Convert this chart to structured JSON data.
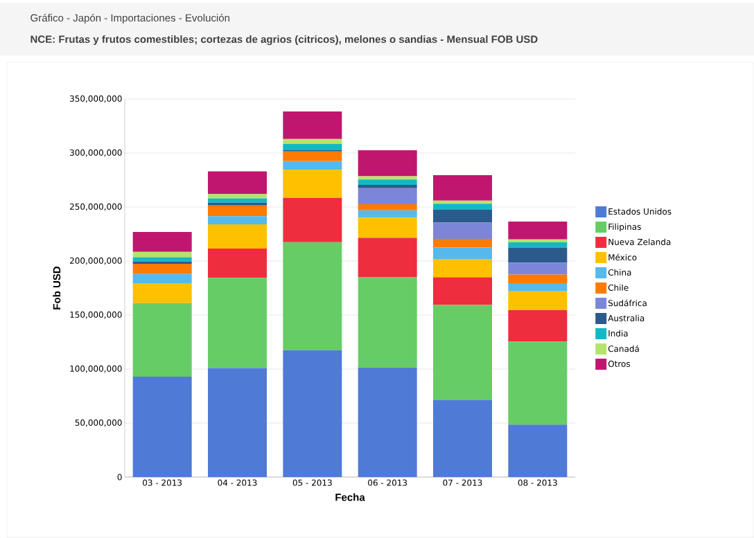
{
  "chart_data": {
    "type": "bar",
    "stacked": true,
    "title": "Gráfico - Japón - Importaciones - Evolución",
    "subtitle": "NCE: Frutas y frutos comestibles; cortezas de agrios (citricos), melones o sandias - Mensual FOB USD",
    "xlabel": "Fecha",
    "ylabel": "Fob USD",
    "categories": [
      "03 - 2013",
      "04 - 2013",
      "05 - 2013",
      "06 - 2013",
      "07 - 2013",
      "08 - 2013"
    ],
    "ylim": [
      0,
      350000000
    ],
    "yticks": [
      0,
      {
        "value": 50000000,
        "label": "50,000,000"
      },
      {
        "value": 100000000,
        "label": "100,000,000"
      },
      {
        "value": 150000000,
        "label": "150,000,000"
      },
      {
        "value": 200000000,
        "label": "200,000,000"
      },
      {
        "value": 250000000,
        "label": "250,000,000"
      },
      {
        "value": 300000000,
        "label": "300,000,000"
      },
      {
        "value": 350000000,
        "label": "350,000,000"
      }
    ],
    "grid": "y",
    "legend": "right",
    "series": [
      {
        "name": "Estados Unidos",
        "color": "#4f7bd6",
        "values": [
          93000000,
          101000000,
          117500000,
          101500000,
          71500000,
          48500000
        ]
      },
      {
        "name": "Filipinas",
        "color": "#66cc66",
        "values": [
          68000000,
          83500000,
          100000000,
          83500000,
          88000000,
          77000000
        ]
      },
      {
        "name": "Nueva Zelanda",
        "color": "#ee2d3e",
        "values": [
          0,
          27000000,
          41000000,
          36500000,
          25500000,
          29000000
        ]
      },
      {
        "name": "México",
        "color": "#ffc000",
        "values": [
          18500000,
          22500000,
          26000000,
          18500000,
          17000000,
          17500000
        ]
      },
      {
        "name": "China",
        "color": "#56b9ec",
        "values": [
          8500000,
          7500000,
          8000000,
          7000000,
          10500000,
          7500000
        ]
      },
      {
        "name": "Chile",
        "color": "#ff7b00",
        "values": [
          9500000,
          10000000,
          9000000,
          5500000,
          8000000,
          8000000
        ]
      },
      {
        "name": "Sudáfrica",
        "color": "#7b86d9",
        "values": [
          0,
          0,
          0,
          15000000,
          15000000,
          11000000
        ]
      },
      {
        "name": "Australia",
        "color": "#2c5a8c",
        "values": [
          2000000,
          2500000,
          1000000,
          3000000,
          12000000,
          14000000
        ]
      },
      {
        "name": "India",
        "color": "#14b8c4",
        "values": [
          4000000,
          4000000,
          6000000,
          5000000,
          5500000,
          5000000
        ]
      },
      {
        "name": "Canadá",
        "color": "#b5e46c",
        "values": [
          5000000,
          4000000,
          4500000,
          3000000,
          3000000,
          2500000
        ]
      },
      {
        "name": "Otros",
        "color": "#c0166f",
        "values": [
          18500000,
          21000000,
          25500000,
          24000000,
          23500000,
          16500000
        ]
      }
    ]
  }
}
